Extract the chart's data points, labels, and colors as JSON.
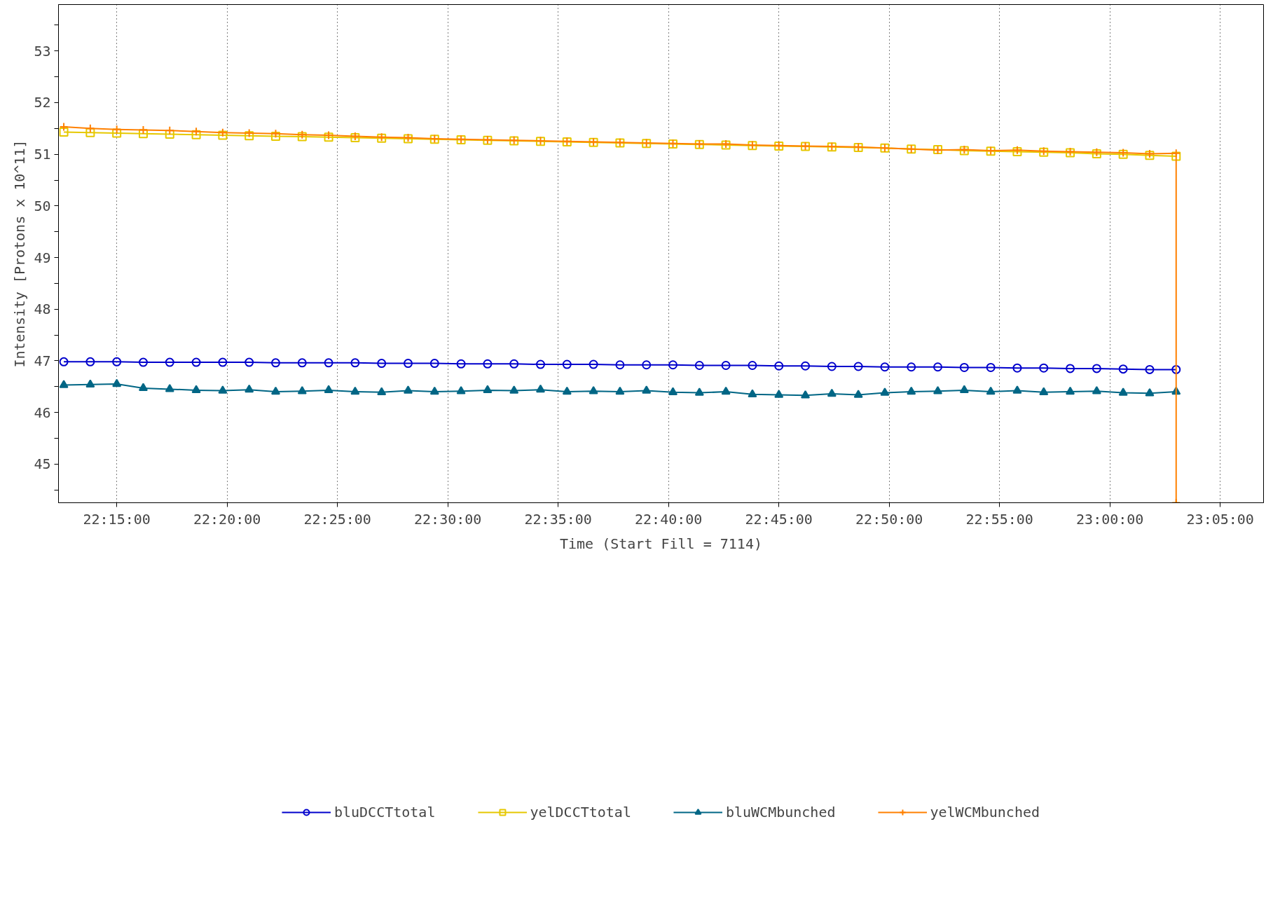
{
  "chart_data": {
    "type": "line",
    "xlabel": "Time (Start Fill = 7114)",
    "ylabel": "Intensity [Protons x 10^11]",
    "x": [
      22.21,
      22.23,
      22.25,
      22.27,
      22.29,
      22.31,
      22.33,
      22.35,
      22.37,
      22.39,
      22.41,
      22.43,
      22.45,
      22.47,
      22.49,
      22.51,
      22.53,
      22.55,
      22.57,
      22.59,
      22.61,
      22.63,
      22.65,
      22.67,
      22.69,
      22.71,
      22.73,
      22.75,
      22.77,
      22.79,
      22.81,
      22.83,
      22.85,
      22.87,
      22.89,
      22.91,
      22.93,
      22.95,
      22.97,
      22.99,
      23.01,
      23.03,
      23.05
    ],
    "series": [
      {
        "name": "bluDCCTtotal",
        "color": "#0000cc",
        "marker": "circle",
        "values": [
          46.98,
          46.98,
          46.98,
          46.97,
          46.97,
          46.97,
          46.97,
          46.97,
          46.96,
          46.96,
          46.96,
          46.96,
          46.95,
          46.95,
          46.95,
          46.94,
          46.94,
          46.94,
          46.93,
          46.93,
          46.93,
          46.92,
          46.92,
          46.92,
          46.91,
          46.91,
          46.91,
          46.9,
          46.9,
          46.89,
          46.89,
          46.88,
          46.88,
          46.88,
          46.87,
          46.87,
          46.86,
          46.86,
          46.85,
          46.85,
          46.84,
          46.83,
          46.83
        ]
      },
      {
        "name": "yelDCCTtotal",
        "color": "#e6c800",
        "marker": "square",
        "values": [
          51.43,
          51.42,
          51.41,
          51.4,
          51.39,
          51.38,
          51.37,
          51.36,
          51.35,
          51.34,
          51.33,
          51.32,
          51.31,
          51.3,
          51.29,
          51.28,
          51.27,
          51.26,
          51.25,
          51.24,
          51.23,
          51.22,
          51.21,
          51.2,
          51.19,
          51.18,
          51.17,
          51.16,
          51.15,
          51.14,
          51.13,
          51.12,
          51.1,
          51.09,
          51.07,
          51.06,
          51.05,
          51.04,
          51.03,
          51.01,
          51.0,
          50.98,
          50.96
        ]
      },
      {
        "name": "bluWCMbunched",
        "color": "#006685",
        "marker": "triangle",
        "values": [
          46.53,
          46.54,
          46.55,
          46.47,
          46.45,
          46.43,
          46.42,
          46.44,
          46.4,
          46.41,
          46.43,
          46.4,
          46.39,
          46.42,
          46.4,
          46.41,
          46.43,
          46.42,
          46.44,
          46.4,
          46.41,
          46.4,
          46.42,
          46.39,
          46.38,
          46.4,
          46.35,
          46.34,
          46.33,
          46.36,
          46.34,
          46.38,
          46.4,
          46.41,
          46.43,
          46.4,
          46.42,
          46.39,
          46.4,
          46.41,
          46.38,
          46.37,
          46.4
        ]
      },
      {
        "name": "yelWCMbunched",
        "color": "#ff8000",
        "marker": "cross",
        "x": [
          22.21,
          22.23,
          22.25,
          22.27,
          22.29,
          22.31,
          22.33,
          22.35,
          22.37,
          22.39,
          22.41,
          22.43,
          22.45,
          22.47,
          22.49,
          22.51,
          22.53,
          22.55,
          22.57,
          22.59,
          22.61,
          22.63,
          22.65,
          22.67,
          22.69,
          22.71,
          22.73,
          22.75,
          22.77,
          22.79,
          22.81,
          22.83,
          22.85,
          22.87,
          22.89,
          22.91,
          22.93,
          22.95,
          22.97,
          22.99,
          23.01,
          23.03,
          23.05,
          23.05
        ],
        "values": [
          51.53,
          51.5,
          51.48,
          51.47,
          51.46,
          51.44,
          51.42,
          51.41,
          51.4,
          51.38,
          51.37,
          51.35,
          51.33,
          51.32,
          51.3,
          51.29,
          51.28,
          51.27,
          51.26,
          51.25,
          51.24,
          51.23,
          51.22,
          51.21,
          51.2,
          51.2,
          51.18,
          51.17,
          51.16,
          51.15,
          51.14,
          51.12,
          51.1,
          51.08,
          51.09,
          51.07,
          51.08,
          51.06,
          51.05,
          51.04,
          51.03,
          51.01,
          51.02,
          44.25
        ]
      }
    ],
    "xlim": [
      22.206,
      23.116
    ],
    "xticks": [
      {
        "value": 22.25,
        "label": "22:15:00"
      },
      {
        "value": 22.3333333,
        "label": "22:20:00"
      },
      {
        "value": 22.4166667,
        "label": "22:25:00"
      },
      {
        "value": 22.5,
        "label": "22:30:00"
      },
      {
        "value": 22.5833333,
        "label": "22:35:00"
      },
      {
        "value": 22.6666667,
        "label": "22:40:00"
      },
      {
        "value": 22.75,
        "label": "22:45:00"
      },
      {
        "value": 22.8333333,
        "label": "22:50:00"
      },
      {
        "value": 22.9166667,
        "label": "22:55:00"
      },
      {
        "value": 23.0,
        "label": "23:00:00"
      },
      {
        "value": 23.0833333,
        "label": "23:05:00"
      }
    ],
    "ylim": [
      44.25,
      53.9
    ],
    "yticks": [
      {
        "value": 44.5,
        "label": null
      },
      45,
      {
        "value": 45.5,
        "label": null
      },
      46,
      {
        "value": 46.5,
        "label": null
      },
      47,
      {
        "value": 47.5,
        "label": null
      },
      48,
      {
        "value": 48.5,
        "label": null
      },
      49,
      {
        "value": 49.5,
        "label": null
      },
      50,
      {
        "value": 50.5,
        "label": null
      },
      51,
      {
        "value": 51.5,
        "label": null
      },
      52,
      {
        "value": 52.5,
        "label": null
      },
      53,
      {
        "value": 53.5,
        "label": null
      }
    ],
    "grid": "x",
    "legend": "bottom",
    "line_style": "solid"
  }
}
